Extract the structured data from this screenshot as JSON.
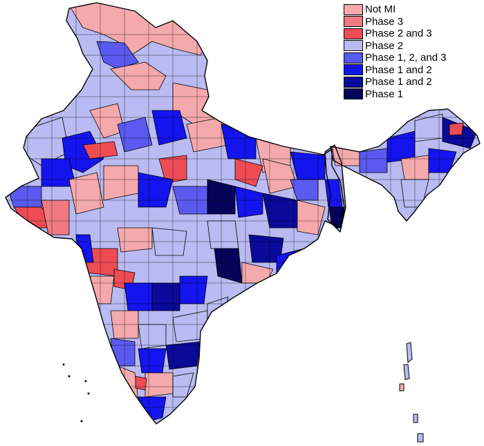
{
  "legend": {
    "items": [
      {
        "label": "Not MI",
        "color": "#f4a9ad"
      },
      {
        "label": "Phase 3",
        "color": "#f07a80"
      },
      {
        "label": "Phase 2 and 3",
        "color": "#ee4c55"
      },
      {
        "label": "Phase 2",
        "color": "#b9bbf2"
      },
      {
        "label": "Phase 1, 2, and 3",
        "color": "#5a5af0"
      },
      {
        "label": "Phase 1 and 2",
        "color": "#1414ee"
      },
      {
        "label": "Phase 1 and 2",
        "color": "#0a0a9a"
      },
      {
        "label": "Phase 1",
        "color": "#04045a"
      }
    ]
  }
}
